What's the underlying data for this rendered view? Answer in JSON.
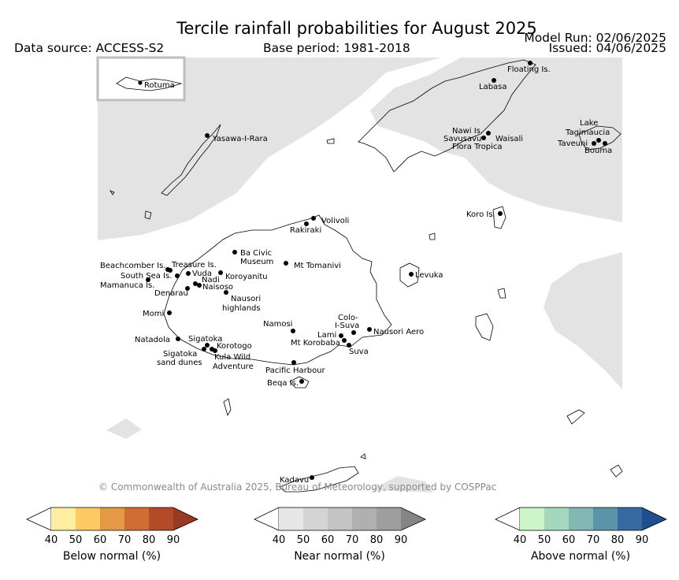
{
  "header": {
    "title": "Tercile rainfall probabilities for August 2025",
    "data_source": "Data source: ACCESS-S2",
    "base_period": "Base period: 1981-2018",
    "model_run": "Model Run: 02/06/2025",
    "issued": "Issued: 04/06/2025"
  },
  "inset": {
    "label": "Rotuma"
  },
  "places": [
    {
      "name": "Floating Is."
    },
    {
      "name": "Labasa"
    },
    {
      "name": "Nawi Is."
    },
    {
      "name": "Savusavu"
    },
    {
      "name": "Waisali"
    },
    {
      "name": "Flora Tropica"
    },
    {
      "name": "Lake"
    },
    {
      "name": "Tagimaucia"
    },
    {
      "name": "Taveuni"
    },
    {
      "name": "Bouma"
    },
    {
      "name": "Yasawa-I-Rara"
    },
    {
      "name": "Koro Is."
    },
    {
      "name": "Volivoli"
    },
    {
      "name": "Rakiraki"
    },
    {
      "name": "Ba Civic"
    },
    {
      "name": "Museum"
    },
    {
      "name": "Mt Tomanivi"
    },
    {
      "name": "Beachcomber Is."
    },
    {
      "name": "Treasure Is."
    },
    {
      "name": "South Sea Is."
    },
    {
      "name": "Vuda"
    },
    {
      "name": "Koroyanitu"
    },
    {
      "name": "Nadi"
    },
    {
      "name": "Mamanuca Is."
    },
    {
      "name": "Naisoso"
    },
    {
      "name": "Denarau"
    },
    {
      "name": "Nausori"
    },
    {
      "name": "highlands"
    },
    {
      "name": "Levuka"
    },
    {
      "name": "Momi"
    },
    {
      "name": "Namosi"
    },
    {
      "name": "Colo-"
    },
    {
      "name": "I-Suva"
    },
    {
      "name": "Nausori Aero"
    },
    {
      "name": "Lami"
    },
    {
      "name": "Mt Korobaba"
    },
    {
      "name": "Suva"
    },
    {
      "name": "Natadola"
    },
    {
      "name": "Sigatoka"
    },
    {
      "name": "Korotogo"
    },
    {
      "name": "Sigatoka"
    },
    {
      "name": "sand dunes"
    },
    {
      "name": "Kula Wild"
    },
    {
      "name": "Adventure"
    },
    {
      "name": "Pacific Harbour"
    },
    {
      "name": "Beqa Is."
    },
    {
      "name": "Kadavu"
    }
  ],
  "credit": "© Commonwealth of Australia 2025, Bureau of Meteorology, supported by COSPPac",
  "legend": {
    "ticks": [
      "40",
      "50",
      "60",
      "70",
      "80",
      "90"
    ],
    "bars": [
      {
        "label": "Below normal (%)",
        "colors": [
          "#ffeea0",
          "#fdc962",
          "#e59945",
          "#cf6d35",
          "#b44b28",
          "#963a22"
        ]
      },
      {
        "label": "Near normal (%)",
        "colors": [
          "#e6e6e6",
          "#d4d4d4",
          "#c4c4c4",
          "#b0b0b0",
          "#9e9e9e",
          "#858585"
        ]
      },
      {
        "label": "Above normal (%)",
        "colors": [
          "#ccf5ca",
          "#a3d8be",
          "#81b8b4",
          "#5b93a8",
          "#3569a0",
          "#1f4e8c"
        ]
      }
    ]
  }
}
